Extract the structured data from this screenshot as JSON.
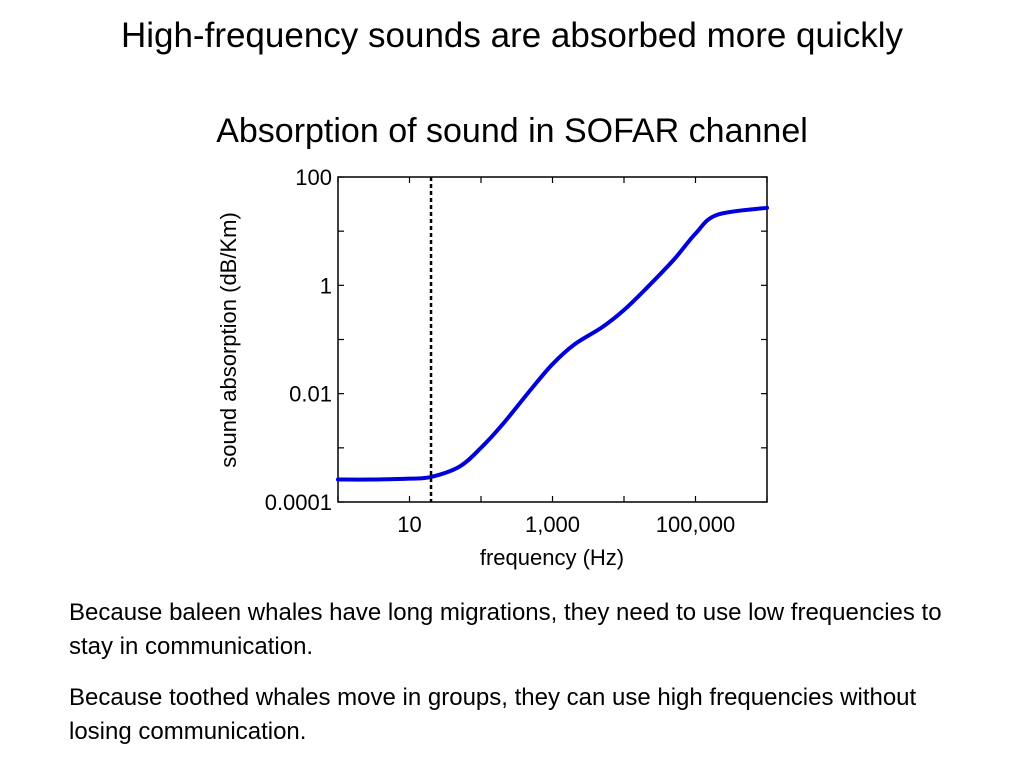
{
  "slide": {
    "title": "High-frequency sounds are absorbed more quickly"
  },
  "chart_data": {
    "type": "line",
    "title": "Absorption of sound in SOFAR channel",
    "xlabel": "frequency (Hz)",
    "ylabel": "sound absorption (dB/Km)",
    "xscale": "log",
    "yscale": "log",
    "xlim": [
      1,
      1000000
    ],
    "ylim": [
      0.0001,
      100
    ],
    "xticks": [
      1,
      10,
      100,
      1000,
      10000,
      100000,
      1000000
    ],
    "xtick_labels": [
      "10",
      "1,000",
      "100,000"
    ],
    "xtick_label_values": [
      10,
      1000,
      100000
    ],
    "yticks": [
      0.0001,
      0.001,
      0.01,
      0.1,
      1,
      10,
      100
    ],
    "ytick_labels": [
      "100",
      "1",
      "0.01",
      "0.0001"
    ],
    "ytick_label_values": [
      100,
      1,
      0.01,
      0.0001
    ],
    "grid": false,
    "legend": "none",
    "series": [
      {
        "color": "#0000dd",
        "x": [
          1,
          3,
          10,
          20,
          50,
          100,
          200,
          500,
          1000,
          2000,
          5000,
          10000,
          20000,
          50000,
          100000,
          200000,
          1000000
        ],
        "y": [
          0.00026,
          0.00026,
          0.00027,
          0.00029,
          0.00045,
          0.001,
          0.0027,
          0.012,
          0.035,
          0.08,
          0.17,
          0.35,
          0.85,
          3.0,
          9.0,
          20.0,
          27.0
        ]
      }
    ],
    "vline": {
      "x": 20,
      "style": "dashed",
      "color": "#000000"
    }
  },
  "notes": [
    "Because baleen whales have long migrations, they need to use low frequencies to stay in communication.",
    "Because toothed whales move in groups, they can use high frequencies without losing communication."
  ]
}
